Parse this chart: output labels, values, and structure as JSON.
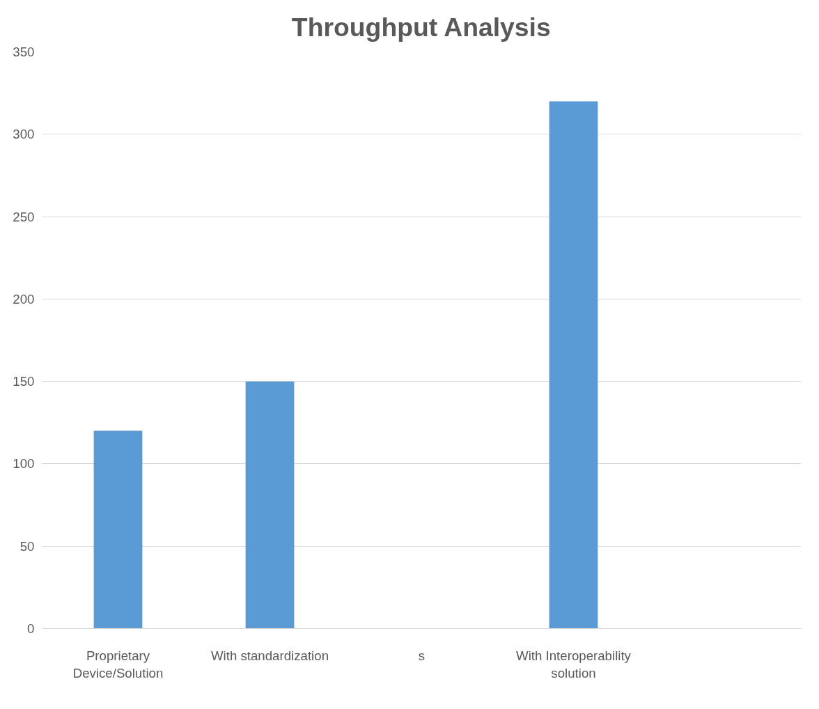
{
  "chart_data": {
    "type": "bar",
    "title": "Throughput Analysis",
    "categories": [
      "Proprietary Device/Solution",
      "With standardization",
      "s",
      "With Interoperability solution",
      null
    ],
    "values": [
      120,
      150,
      null,
      320,
      null
    ],
    "color": "#5b9bd5",
    "ylim": [
      0,
      350
    ],
    "yticks": [
      0,
      50,
      100,
      150,
      200,
      250,
      300,
      350
    ],
    "grid": "y"
  }
}
